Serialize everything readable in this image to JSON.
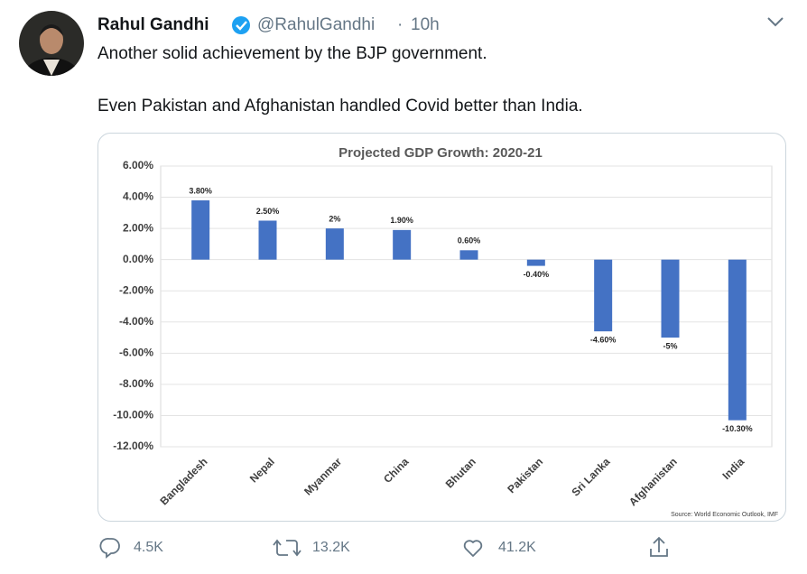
{
  "tweet": {
    "name": "Rahul Gandhi",
    "handle": "@RahulGandhi",
    "separator": "·",
    "time": "10h",
    "text": [
      "Another solid achievement by the BJP government.",
      "Even Pakistan and Afghanistan handled Covid better than India."
    ],
    "replies": "4.5K",
    "retweets": "13.2K",
    "likes": "41.2K"
  },
  "chart_data": {
    "type": "bar",
    "title": "Projected GDP Growth: 2020-21",
    "categories": [
      "Bangladesh",
      "Nepal",
      "Myanmar",
      "China",
      "Bhutan",
      "Pakistan",
      "Sri Lanka",
      "Afghanistan",
      "India"
    ],
    "values": [
      3.8,
      2.5,
      2,
      1.9,
      0.6,
      -0.4,
      -4.6,
      -5,
      -10.3
    ],
    "value_labels": [
      "3.80%",
      "2.50%",
      "2%",
      "1.90%",
      "0.60%",
      "-0.40%",
      "-4.60%",
      "-5%",
      "-10.30%"
    ],
    "color": "#4472c4",
    "ylim": [
      -12,
      6
    ],
    "yticks": [
      {
        "value": 6,
        "label": "6.00%"
      },
      {
        "value": 4,
        "label": "4.00%"
      },
      {
        "value": 2,
        "label": "2.00%"
      },
      {
        "value": 0,
        "label": "0.00%"
      },
      {
        "value": -2,
        "label": "-2.00%"
      },
      {
        "value": -4,
        "label": "-4.00%"
      },
      {
        "value": -6,
        "label": "-6.00%"
      },
      {
        "value": -8,
        "label": "-8.00%"
      },
      {
        "value": -10,
        "label": "-10.00%"
      },
      {
        "value": -12,
        "label": "-12.00%"
      }
    ],
    "grid": true,
    "source": "Source: World Economic Outlook, IMF"
  }
}
